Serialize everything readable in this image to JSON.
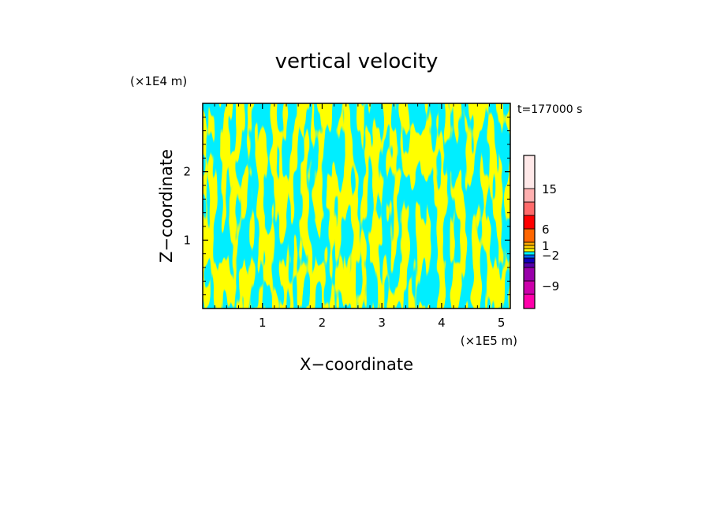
{
  "chart_data": {
    "type": "heatmap",
    "title": "vertical velocity",
    "xlabel": "X−coordinate",
    "ylabel": "Z−coordinate",
    "x_unit": "(×1E5 m)",
    "y_unit": "(×1E4 m)",
    "time_label": "t=177000 s",
    "xlim": [
      0,
      5.15
    ],
    "ylim": [
      0,
      3.0
    ],
    "x_ticks": [
      "1",
      "2",
      "3",
      "4",
      "5"
    ],
    "y_ticks": [
      "1",
      "2"
    ],
    "colorbar": {
      "levels": [
        {
          "color": "#ff00aa"
        },
        {
          "color": "#cc00aa"
        },
        {
          "color": "#9900aa"
        },
        {
          "color": "#5500aa"
        },
        {
          "color": "#1100bb"
        },
        {
          "color": "#0066ff"
        },
        {
          "color": "#00ffff"
        },
        {
          "color": "#ffff00"
        },
        {
          "color": "#ffd000"
        },
        {
          "color": "#ffaa00"
        },
        {
          "color": "#ff6600"
        },
        {
          "color": "#ff0000"
        },
        {
          "color": "#ff6a6a"
        },
        {
          "color": "#ffb0b0"
        },
        {
          "color": "#ffe8e8"
        }
      ],
      "tick_labels": [
        "−9",
        "−2",
        "1",
        "6",
        "15"
      ]
    },
    "field_colors": {
      "updraft": "#ffff00",
      "downdraft": "#00eeff"
    }
  }
}
